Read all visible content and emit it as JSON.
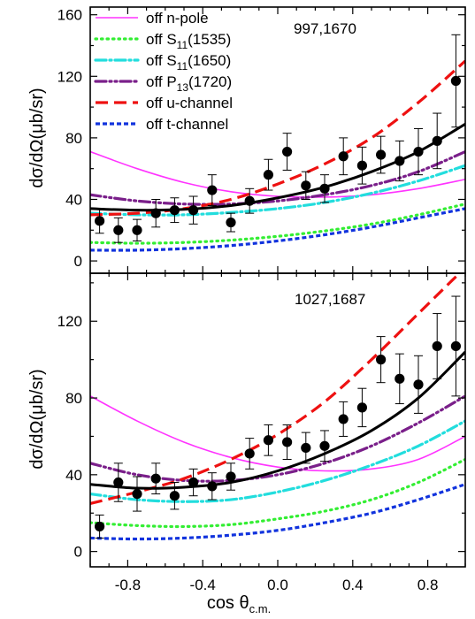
{
  "chart_data": [
    {
      "type": "line",
      "panel_label": "997,1670",
      "ylabel": "dσ/dΩ(μb/sr)",
      "xlabel": "",
      "xlim": [
        -1,
        1
      ],
      "ylim": [
        -8,
        165
      ],
      "x_ticks": [
        -0.8,
        -0.4,
        0.0,
        0.4,
        0.8
      ],
      "y_ticks": [
        0,
        40,
        80,
        120,
        160
      ],
      "x_tick_labels_shown": false,
      "grid": false,
      "legend": {
        "placement": "top-left",
        "entries": [
          {
            "pre": "off n-pole",
            "sub": "",
            "post": "",
            "color": "#ff33ff",
            "style": "solid"
          },
          {
            "pre": "off S",
            "sub": "11",
            "post": "(1535)",
            "color": "#33ee33",
            "style": "dot"
          },
          {
            "pre": "off S",
            "sub": "11",
            "post": "(1650)",
            "color": "#22dddd",
            "style": "dashdot"
          },
          {
            "pre": "off P",
            "sub": "13",
            "post": "(1720)",
            "color": "#7a1f8a",
            "style": "dashdotdot"
          },
          {
            "pre": "off u-channel",
            "sub": "",
            "post": "",
            "color": "#ee1111",
            "style": "dash"
          },
          {
            "pre": "off t-channel",
            "sub": "",
            "post": "",
            "color": "#1133dd",
            "style": "shortdash"
          }
        ]
      },
      "series": [
        {
          "color": "#000000",
          "style": "full",
          "x": [
            -1,
            -0.75,
            -0.5,
            -0.25,
            0,
            0.25,
            0.5,
            0.75,
            1
          ],
          "y": [
            34,
            33,
            33.5,
            36,
            41,
            48,
            58,
            71,
            89
          ]
        },
        {
          "color": "#ff33ff",
          "style": "solid",
          "x": [
            -1,
            -0.75,
            -0.5,
            -0.25,
            0,
            0.25,
            0.5,
            0.75,
            1
          ],
          "y": [
            71,
            60,
            51,
            45,
            42,
            41.5,
            43,
            47,
            53
          ]
        },
        {
          "color": "#33ee33",
          "style": "dot",
          "x": [
            -1,
            -0.75,
            -0.5,
            -0.25,
            0,
            0.25,
            0.5,
            0.75,
            1
          ],
          "y": [
            12,
            11.5,
            12,
            13.5,
            16,
            19.5,
            24,
            30,
            37
          ]
        },
        {
          "color": "#22dddd",
          "style": "dashdot",
          "x": [
            -1,
            -0.75,
            -0.5,
            -0.25,
            0,
            0.25,
            0.5,
            0.75,
            1
          ],
          "y": [
            31,
            30,
            30,
            31.5,
            34,
            38,
            44,
            52,
            62
          ]
        },
        {
          "color": "#7a1f8a",
          "style": "dashdotdot",
          "x": [
            -1,
            -0.75,
            -0.5,
            -0.25,
            0,
            0.25,
            0.5,
            0.75,
            1
          ],
          "y": [
            43,
            39,
            37,
            37,
            39,
            43,
            49,
            58,
            71
          ]
        },
        {
          "color": "#ee1111",
          "style": "dash",
          "x": [
            -1,
            -0.75,
            -0.5,
            -0.25,
            0,
            0.25,
            0.5,
            0.75,
            1
          ],
          "y": [
            30,
            31,
            34,
            40,
            50,
            63,
            80,
            103,
            130
          ]
        },
        {
          "color": "#1133dd",
          "style": "shortdash",
          "x": [
            -1,
            -0.75,
            -0.5,
            -0.25,
            0,
            0.25,
            0.5,
            0.75,
            1
          ],
          "y": [
            7,
            7,
            8,
            10,
            13,
            17,
            22,
            28,
            34
          ]
        }
      ],
      "data_points": {
        "x": [
          -0.95,
          -0.85,
          -0.75,
          -0.65,
          -0.55,
          -0.45,
          -0.35,
          -0.25,
          -0.15,
          -0.05,
          0.05,
          0.15,
          0.25,
          0.35,
          0.45,
          0.55,
          0.65,
          0.75,
          0.85,
          0.95
        ],
        "y": [
          26,
          20,
          20,
          31,
          33,
          33,
          46,
          25,
          39,
          56,
          71,
          49,
          47,
          68,
          62,
          69,
          65,
          71,
          78,
          117
        ],
        "err": [
          8,
          8,
          7,
          9,
          8,
          9,
          10,
          6,
          8,
          10,
          12,
          9,
          9,
          12,
          12,
          12,
          13,
          15,
          18,
          30
        ]
      }
    },
    {
      "type": "line",
      "panel_label": "1027,1687",
      "ylabel": "dσ/dΩ(μb/sr)",
      "xlabel": "cos θc.m.",
      "xlabel_main": "cos θ",
      "xlabel_sub": "c.m.",
      "xlim": [
        -1,
        1
      ],
      "ylim": [
        -8,
        145
      ],
      "x_ticks": [
        -0.8,
        -0.4,
        0.0,
        0.4,
        0.8
      ],
      "y_ticks": [
        0,
        40,
        80,
        120
      ],
      "x_tick_labels": [
        "-0.8",
        "-0.4",
        "0.0",
        "0.4",
        "0.8"
      ],
      "y_tick_labels": [
        "0",
        "40",
        "80",
        "120"
      ],
      "grid": false,
      "series": [
        {
          "color": "#000000",
          "style": "full",
          "x": [
            -1,
            -0.75,
            -0.5,
            -0.25,
            0,
            0.25,
            0.5,
            0.75,
            1
          ],
          "y": [
            35,
            33,
            33.5,
            36,
            42,
            51,
            63,
            80,
            104
          ]
        },
        {
          "color": "#ff33ff",
          "style": "solid",
          "x": [
            -1,
            -0.75,
            -0.5,
            -0.25,
            0,
            0.25,
            0.5,
            0.75,
            1
          ],
          "y": [
            81,
            68,
            57,
            49,
            44,
            42,
            43,
            48,
            60
          ]
        },
        {
          "color": "#33ee33",
          "style": "dot",
          "x": [
            -1,
            -0.75,
            -0.5,
            -0.25,
            0,
            0.25,
            0.5,
            0.75,
            1
          ],
          "y": [
            15,
            13.5,
            13,
            14,
            17,
            21,
            27,
            36,
            48
          ]
        },
        {
          "color": "#22dddd",
          "style": "dashdot",
          "x": [
            -1,
            -0.75,
            -0.5,
            -0.25,
            0,
            0.25,
            0.5,
            0.75,
            1
          ],
          "y": [
            30,
            27,
            26,
            27,
            31,
            37,
            45,
            55,
            68
          ]
        },
        {
          "color": "#7a1f8a",
          "style": "dashdotdot",
          "x": [
            -1,
            -0.75,
            -0.5,
            -0.25,
            0,
            0.25,
            0.5,
            0.75,
            1
          ],
          "y": [
            46,
            40,
            37,
            37,
            40,
            46,
            55,
            67,
            81
          ]
        },
        {
          "color": "#ee1111",
          "style": "dash",
          "x": [
            -1,
            -0.75,
            -0.5,
            -0.25,
            0,
            0.25,
            0.5,
            0.75,
            1
          ],
          "y": [
            25,
            31,
            38,
            48,
            61,
            78,
            100,
            124,
            148
          ]
        },
        {
          "color": "#1133dd",
          "style": "shortdash",
          "x": [
            -1,
            -0.75,
            -0.5,
            -0.25,
            0,
            0.25,
            0.5,
            0.75,
            1
          ],
          "y": [
            7,
            6.5,
            7,
            8.5,
            11,
            15,
            20,
            27,
            35
          ]
        }
      ],
      "data_points": {
        "x": [
          -0.95,
          -0.85,
          -0.75,
          -0.65,
          -0.55,
          -0.45,
          -0.35,
          -0.25,
          -0.15,
          -0.05,
          0.05,
          0.15,
          0.25,
          0.35,
          0.45,
          0.55,
          0.65,
          0.75,
          0.85,
          0.95
        ],
        "y": [
          13,
          36,
          30,
          38,
          29,
          36,
          34,
          39,
          51,
          58,
          57,
          54,
          55,
          69,
          75,
          100,
          90,
          87,
          107,
          107
        ],
        "err": [
          6,
          10,
          9,
          8,
          7,
          7,
          7,
          7,
          8,
          8,
          9,
          8,
          8,
          9,
          10,
          12,
          13,
          15,
          17,
          26
        ]
      }
    }
  ]
}
